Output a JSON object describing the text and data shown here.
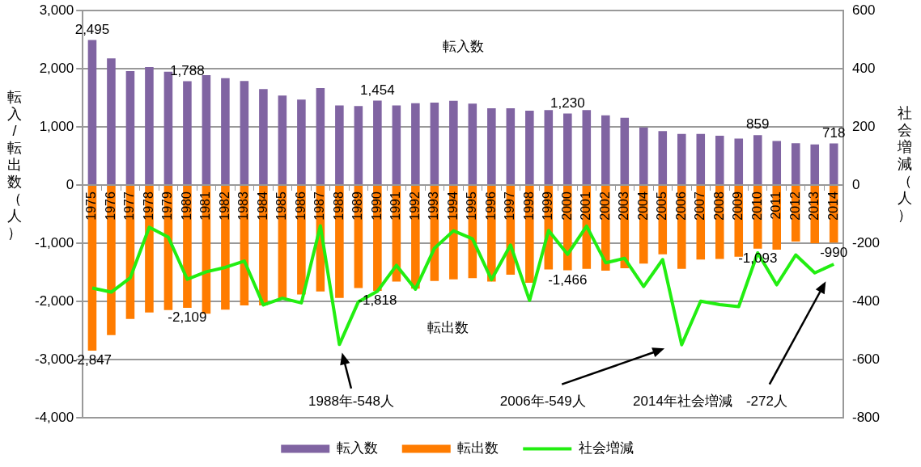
{
  "chart_data": {
    "type": "bar",
    "ylabel": "転入/転出数（人）",
    "y2label": "社会増減（人）",
    "categories": [
      "1975",
      "1976",
      "1977",
      "1978",
      "1979",
      "1980",
      "1981",
      "1982",
      "1983",
      "1984",
      "1985",
      "1986",
      "1987",
      "1988",
      "1989",
      "1990",
      "1991",
      "1992",
      "1993",
      "1994",
      "1995",
      "1996",
      "1997",
      "1998",
      "1999",
      "2000",
      "2001",
      "2002",
      "2003",
      "2004",
      "2005",
      "2006",
      "2007",
      "2008",
      "2009",
      "2010",
      "2011",
      "2012",
      "2013",
      "2014"
    ],
    "series": [
      {
        "name": "転入数",
        "color": "#8064a2",
        "values": [
          2495,
          2180,
          1960,
          2030,
          1950,
          1788,
          1890,
          1840,
          1790,
          1650,
          1540,
          1470,
          1670,
          1370,
          1360,
          1454,
          1370,
          1410,
          1420,
          1450,
          1400,
          1320,
          1320,
          1280,
          1290,
          1230,
          1290,
          1200,
          1160,
          990,
          930,
          880,
          880,
          850,
          800,
          859,
          760,
          720,
          700,
          718
        ],
        "value_labels": [
          "2,495",
          null,
          null,
          null,
          null,
          "1,788",
          null,
          null,
          null,
          null,
          null,
          null,
          null,
          null,
          null,
          "1,454",
          null,
          null,
          null,
          null,
          null,
          null,
          null,
          null,
          null,
          "1,230",
          null,
          null,
          null,
          null,
          null,
          null,
          null,
          null,
          null,
          "859",
          null,
          null,
          null,
          "718"
        ]
      },
      {
        "name": "転出数",
        "color": "#ff7c00",
        "values": [
          -2847,
          -2580,
          -2300,
          -2190,
          -2150,
          -2109,
          -2210,
          -2140,
          -2070,
          -2070,
          -1970,
          -1880,
          -1830,
          -1940,
          -1770,
          -1818,
          -1660,
          -1780,
          -1650,
          -1620,
          -1600,
          -1660,
          -1540,
          -1680,
          -1450,
          -1466,
          -1440,
          -1470,
          -1430,
          -1350,
          -1190,
          -1440,
          -1280,
          -1270,
          -1230,
          -1093,
          -1110,
          -970,
          -1000,
          -990
        ],
        "value_labels": [
          "-2,847",
          null,
          null,
          null,
          null,
          "-2,109",
          null,
          null,
          null,
          null,
          null,
          null,
          null,
          null,
          null,
          "-1,818",
          null,
          null,
          null,
          null,
          null,
          null,
          null,
          null,
          null,
          "-1,466",
          null,
          null,
          null,
          null,
          null,
          null,
          null,
          null,
          null,
          "-1,093",
          null,
          null,
          null,
          "-990"
        ]
      },
      {
        "name": "社会増減",
        "type": "line",
        "axis": "y2",
        "color": "#22ee11",
        "values": [
          -354,
          -368,
          -319,
          -145,
          -179,
          -324,
          -298,
          -283,
          -261,
          -412,
          -389,
          -405,
          -140,
          -548,
          -401,
          -365,
          -276,
          -358,
          -217,
          -157,
          -185,
          -325,
          -206,
          -397,
          -156,
          -238,
          -141,
          -267,
          -252,
          -349,
          -256,
          -549,
          -399,
          -411,
          -418,
          -233,
          -343,
          -240,
          -302,
          -272
        ]
      }
    ],
    "stacked": true,
    "ylim": [
      -4000,
      3000
    ],
    "yticks": [
      {
        "value": -4000,
        "label": "-4,000"
      },
      {
        "value": -3000,
        "label": "-3,000"
      },
      {
        "value": -2000,
        "label": "-2,000"
      },
      {
        "value": -1000,
        "label": "-1,000"
      },
      0,
      {
        "value": 1000,
        "label": "1,000"
      },
      {
        "value": 2000,
        "label": "2,000"
      },
      {
        "value": 3000,
        "label": "3,000"
      }
    ],
    "y2lim": [
      -800,
      600
    ],
    "y2ticks": [
      -800,
      -600,
      -400,
      -200,
      0,
      200,
      400,
      600
    ],
    "grid": "y",
    "legend": "bottom",
    "marker": "none",
    "line_style": "solid",
    "annotations": [
      "転入数",
      "転出数",
      "1988年-548人",
      "2006年-549人",
      "2014年社会増減　-272人"
    ]
  }
}
